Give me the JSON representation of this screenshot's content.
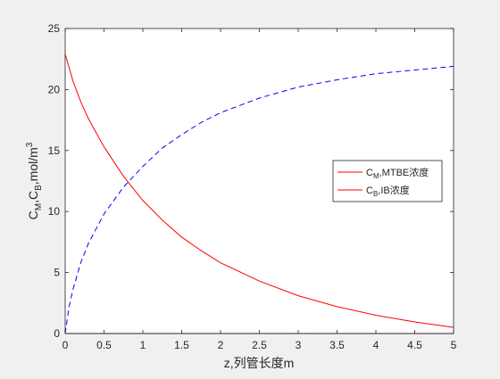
{
  "chart_data": {
    "type": "line",
    "xlabel": "z,列管长度m",
    "ylabel_parts": {
      "base1": "C",
      "sub1": "M",
      "sep": ",C",
      "sub2": "B",
      "unit": ",mol/m",
      "sup": "3"
    },
    "xlim": [
      0,
      5
    ],
    "ylim": [
      0,
      25
    ],
    "x_ticks": [
      "0",
      "0.5",
      "1",
      "1.5",
      "2",
      "2.5",
      "3",
      "3.5",
      "4",
      "4.5",
      "5"
    ],
    "y_ticks": [
      "0",
      "5",
      "10",
      "15",
      "20",
      "25"
    ],
    "grid": false,
    "legend_position": "right-middle",
    "colors": {
      "red": "#ff0000",
      "blue": "#0000ff",
      "axis": "#262626"
    },
    "series": [
      {
        "name_parts": {
          "base": "C",
          "sub": "M",
          "rest": ",MTBE浓度"
        },
        "color": "#ff0000",
        "style": "solid",
        "x": [
          0,
          0.1,
          0.2,
          0.3,
          0.5,
          0.75,
          1,
          1.25,
          1.5,
          1.75,
          2,
          2.5,
          3,
          3.5,
          4,
          4.5,
          5
        ],
        "y": [
          22.9,
          20.7,
          19.0,
          17.6,
          15.3,
          12.9,
          10.9,
          9.3,
          7.9,
          6.8,
          5.8,
          4.3,
          3.1,
          2.2,
          1.5,
          0.95,
          0.5
        ]
      },
      {
        "name_parts": {
          "base": "C",
          "sub": "B",
          "rest": ",IB浓度"
        },
        "color": "#ff0000",
        "style": "solid",
        "x": [
          0,
          5
        ],
        "y": [
          0,
          0
        ]
      },
      {
        "color": "#0000ff",
        "style": "dashed",
        "x": [
          0,
          5
        ],
        "y": [
          0,
          0
        ]
      },
      {
        "color": "#0000ff",
        "style": "dashed",
        "x": [
          0,
          0.05,
          0.1,
          0.2,
          0.3,
          0.5,
          0.75,
          1,
          1.25,
          1.5,
          1.75,
          2,
          2.5,
          3,
          3.5,
          4,
          4.5,
          5
        ],
        "y": [
          0,
          2.2,
          3.6,
          5.8,
          7.4,
          9.8,
          12.0,
          13.7,
          15.2,
          16.3,
          17.3,
          18.1,
          19.3,
          20.2,
          20.8,
          21.3,
          21.6,
          21.9
        ]
      }
    ]
  }
}
